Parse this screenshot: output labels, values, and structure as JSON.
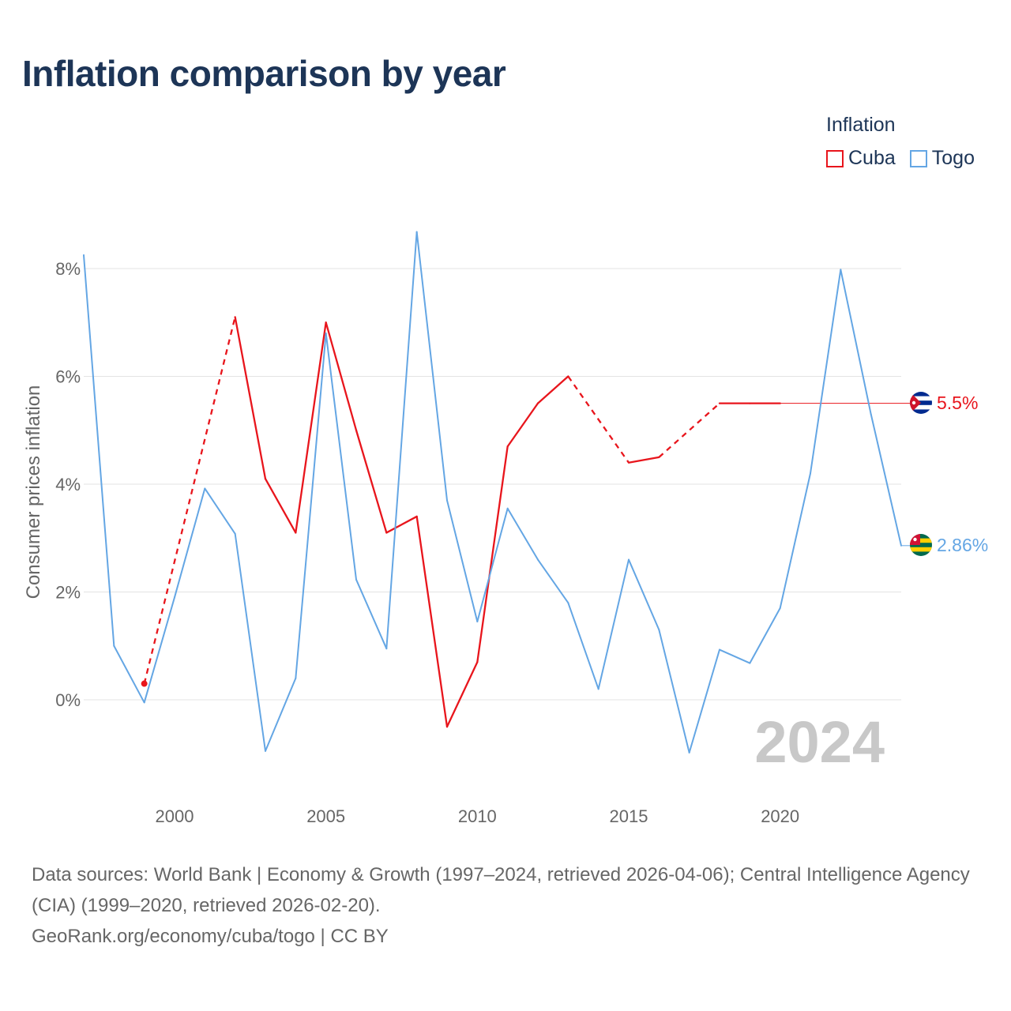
{
  "title": "Inflation comparison by year",
  "legend": {
    "title": "Inflation",
    "items": [
      {
        "label": "Cuba",
        "color": "#e8151c"
      },
      {
        "label": "Togo",
        "color": "#64a6e4"
      }
    ]
  },
  "year_watermark": "2024",
  "chart_data": {
    "type": "line",
    "title": "Inflation comparison by year",
    "xlabel": "",
    "ylabel": "Consumer prices inflation",
    "xlim": [
      1997,
      2024
    ],
    "ylim": [
      -1.8,
      9
    ],
    "x_ticks": [
      2000,
      2005,
      2010,
      2015,
      2020
    ],
    "y_ticks": [
      0,
      2,
      4,
      6,
      8
    ],
    "y_tick_labels": [
      "0%",
      "2%",
      "4%",
      "6%",
      "8%"
    ],
    "grid": true,
    "legend_position": "top-right",
    "series": [
      {
        "name": "Cuba",
        "color": "#e8151c",
        "end_label": "5.5%",
        "flag_icon": "cuba-flag-icon",
        "points": [
          {
            "x": 1999,
            "y": 0.3
          },
          {
            "x": 2002,
            "y": 7.1
          },
          {
            "x": 2003,
            "y": 4.1
          },
          {
            "x": 2004,
            "y": 3.1
          },
          {
            "x": 2005,
            "y": 7.0
          },
          {
            "x": 2006,
            "y": 5.0
          },
          {
            "x": 2007,
            "y": 3.1
          },
          {
            "x": 2008,
            "y": 3.4
          },
          {
            "x": 2009,
            "y": -0.5
          },
          {
            "x": 2010,
            "y": 0.7
          },
          {
            "x": 2011,
            "y": 4.7
          },
          {
            "x": 2012,
            "y": 5.5
          },
          {
            "x": 2013,
            "y": 6.0
          },
          {
            "x": 2015,
            "y": 4.4
          },
          {
            "x": 2016,
            "y": 4.5
          },
          {
            "x": 2018,
            "y": 5.5
          },
          {
            "x": 2019,
            "y": 5.5
          },
          {
            "x": 2020,
            "y": 5.5
          }
        ],
        "dashed_segments": [
          [
            1999,
            2002
          ],
          [
            2013,
            2015
          ],
          [
            2016,
            2018
          ]
        ],
        "extend_to": 2024,
        "extend_value": 5.5
      },
      {
        "name": "Togo",
        "color": "#64a6e4",
        "end_label": "2.86%",
        "flag_icon": "togo-flag-icon",
        "points": [
          {
            "x": 1997,
            "y": 8.25
          },
          {
            "x": 1998,
            "y": 1.0
          },
          {
            "x": 1999,
            "y": -0.05
          },
          {
            "x": 2000,
            "y": 1.9
          },
          {
            "x": 2001,
            "y": 3.92
          },
          {
            "x": 2002,
            "y": 3.08
          },
          {
            "x": 2003,
            "y": -0.95
          },
          {
            "x": 2004,
            "y": 0.4
          },
          {
            "x": 2005,
            "y": 6.8
          },
          {
            "x": 2006,
            "y": 2.23
          },
          {
            "x": 2007,
            "y": 0.95
          },
          {
            "x": 2008,
            "y": 8.68
          },
          {
            "x": 2009,
            "y": 3.7
          },
          {
            "x": 2010,
            "y": 1.45
          },
          {
            "x": 2011,
            "y": 3.55
          },
          {
            "x": 2012,
            "y": 2.6
          },
          {
            "x": 2013,
            "y": 1.8
          },
          {
            "x": 2014,
            "y": 0.2
          },
          {
            "x": 2015,
            "y": 2.6
          },
          {
            "x": 2016,
            "y": 1.3
          },
          {
            "x": 2017,
            "y": -0.98
          },
          {
            "x": 2018,
            "y": 0.93
          },
          {
            "x": 2019,
            "y": 0.68
          },
          {
            "x": 2020,
            "y": 1.7
          },
          {
            "x": 2021,
            "y": 4.2
          },
          {
            "x": 2022,
            "y": 7.98
          },
          {
            "x": 2023,
            "y": 5.3
          },
          {
            "x": 2024,
            "y": 2.86
          }
        ],
        "dashed_segments": []
      }
    ]
  },
  "footer": {
    "sources": "Data sources: World Bank | Economy & Growth (1997–2024, retrieved 2026-04-06); Central Intelligence Agency (CIA) (1999–2020, retrieved 2026-02-20).",
    "attribution": "GeoRank.org/economy/cuba/togo | CC BY"
  }
}
